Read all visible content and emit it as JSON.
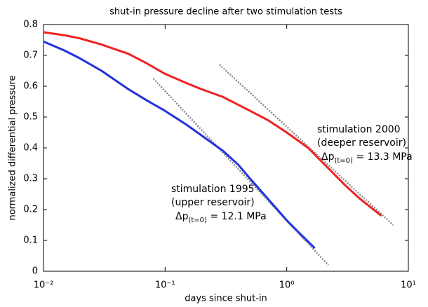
{
  "chart_data": {
    "type": "line",
    "title": "shut-in pressure decline after two stimulation tests",
    "x_label": "days since shut-in",
    "y_label": "normalized differential pressure",
    "log_x": true,
    "grid": false,
    "xlim": [
      0.01,
      10
    ],
    "ylim": [
      0,
      0.8
    ],
    "xticks": [
      {
        "value": 0.01,
        "label": "10⁻²"
      },
      {
        "value": 0.1,
        "label": "10⁻¹"
      },
      {
        "value": 1,
        "label": "10⁰"
      },
      {
        "value": 10,
        "label": "10¹"
      }
    ],
    "yticks": [
      0,
      0.1,
      0.2,
      0.3,
      0.4,
      0.5,
      0.6,
      0.7,
      0.8
    ],
    "series": [
      {
        "color": "#2233dd",
        "x": [
          0.01,
          0.015,
          0.02,
          0.03,
          0.05,
          0.07,
          0.1,
          0.15,
          0.2,
          0.3,
          0.4,
          0.5,
          0.7,
          1,
          1.3,
          1.7
        ],
        "values": [
          0.745,
          0.715,
          0.69,
          0.65,
          0.59,
          0.555,
          0.52,
          0.475,
          0.44,
          0.39,
          0.345,
          0.3,
          0.235,
          0.165,
          0.12,
          0.075
        ]
      },
      {
        "color": "#ee2222",
        "x": [
          0.01,
          0.015,
          0.02,
          0.03,
          0.05,
          0.07,
          0.1,
          0.15,
          0.2,
          0.3,
          0.5,
          0.7,
          1,
          1.5,
          2,
          3,
          4,
          6
        ],
        "values": [
          0.775,
          0.765,
          0.755,
          0.735,
          0.705,
          0.675,
          0.64,
          0.61,
          0.59,
          0.565,
          0.52,
          0.49,
          0.45,
          0.4,
          0.35,
          0.28,
          0.235,
          0.18
        ]
      }
    ],
    "reference_lines": [
      {
        "color": "#888888",
        "x": [
          0.08,
          2.2
        ],
        "values": [
          0.625,
          0.02
        ]
      },
      {
        "color": "#888888",
        "x": [
          0.28,
          7.5
        ],
        "values": [
          0.67,
          0.15
        ]
      }
    ],
    "annotations": [
      {
        "lines": [
          "stimulation 1995",
          "(upper reservoir)"
        ],
        "pressure": [
          "Δp",
          "(t=0)",
          " = 12.1 MPa"
        ]
      },
      {
        "lines": [
          "stimulation 2000",
          "(deeper reservoir)"
        ],
        "pressure": [
          "Δp",
          "(t=0)",
          " = 13.3 MPa"
        ]
      }
    ]
  }
}
